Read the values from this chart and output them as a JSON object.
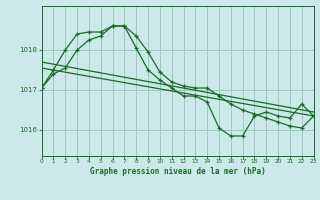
{
  "title": "Graphe pression niveau de la mer (hPa)",
  "bg_color": "#cce8e8",
  "grid_color": "#99ccbb",
  "line_color": "#1a6b2a",
  "x_min": 0,
  "x_max": 23,
  "y_min": 1015.35,
  "y_max": 1019.1,
  "yticks": [
    1016,
    1017,
    1018
  ],
  "xticks": [
    0,
    1,
    2,
    3,
    4,
    5,
    6,
    7,
    8,
    9,
    10,
    11,
    12,
    13,
    14,
    15,
    16,
    17,
    18,
    19,
    20,
    21,
    22,
    23
  ],
  "series1": [
    1017.05,
    1017.4,
    1017.55,
    1018.0,
    1018.25,
    1018.35,
    1018.6,
    1018.6,
    1018.05,
    1017.5,
    1017.25,
    1017.05,
    1016.85,
    1016.85,
    1016.7,
    1016.05,
    1015.85,
    1015.85,
    1016.35,
    1016.45,
    1016.35,
    1016.3,
    1016.65,
    1016.35
  ],
  "series2": [
    1017.05,
    1017.5,
    1018.0,
    1018.4,
    1018.45,
    1018.45,
    1018.6,
    1018.6,
    1018.35,
    1017.95,
    1017.45,
    1017.2,
    1017.1,
    1017.05,
    1017.05,
    1016.85,
    1016.65,
    1016.5,
    1016.4,
    1016.3,
    1016.2,
    1016.1,
    1016.05,
    1016.35
  ],
  "trend1": [
    1017.55,
    1016.35
  ],
  "trend1_x": [
    0,
    23
  ],
  "trend2": [
    1017.7,
    1016.45
  ],
  "trend2_x": [
    0,
    23
  ]
}
